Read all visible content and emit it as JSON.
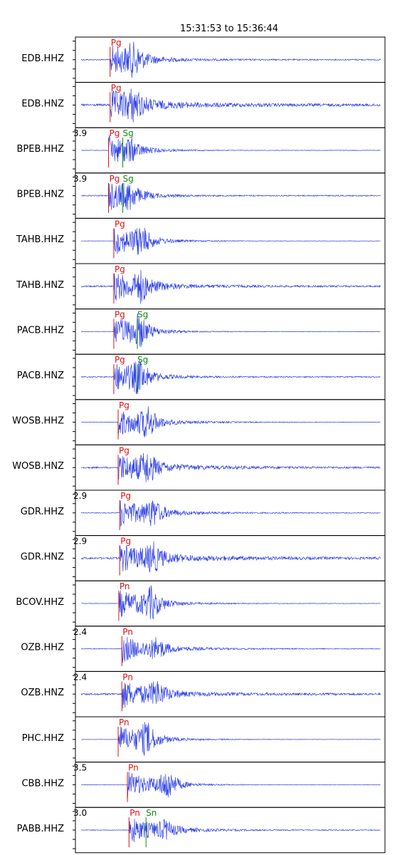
{
  "chart_data": {
    "type": "line",
    "title": "15:31:53 to 15:36:44",
    "xlabel": "",
    "ylabel": "",
    "colors": {
      "trace": "#1a2ee6",
      "p_pick": "#e01010",
      "s_pick": "#148a14",
      "frame": "#000000"
    },
    "panels": [
      {
        "station": "EDB.HHZ",
        "amp_label": "",
        "pick_time": 0.112,
        "s_time": null,
        "p_label": "Pg",
        "s_label": "",
        "burst_time": 0.188,
        "noise": 0.03,
        "decay": 0.1,
        "s_amp": 1.0
      },
      {
        "station": "EDB.HNZ",
        "amp_label": "",
        "pick_time": 0.112,
        "s_time": null,
        "p_label": "Pg",
        "s_label": "",
        "burst_time": 0.188,
        "noise": 0.06,
        "decay": 0.22,
        "s_amp": 0.9
      },
      {
        "station": "BPEB.HHZ",
        "amp_label": "3.9",
        "pick_time": 0.107,
        "s_time": 0.153,
        "p_label": "Pg",
        "s_label": "Sg",
        "burst_time": 0.175,
        "noise": 0.015,
        "decay": 0.05,
        "s_amp": 0.6
      },
      {
        "station": "BPEB.HNZ",
        "amp_label": "3.9",
        "pick_time": 0.107,
        "s_time": 0.153,
        "p_label": "Pg",
        "s_label": "Sg",
        "burst_time": 0.175,
        "noise": 0.03,
        "decay": 0.05,
        "s_amp": 0.7
      },
      {
        "station": "TAHB.HHZ",
        "amp_label": "",
        "pick_time": 0.124,
        "s_time": null,
        "p_label": "Pg",
        "s_label": "",
        "burst_time": 0.212,
        "noise": 0.01,
        "decay": 0.08,
        "s_amp": 0.9
      },
      {
        "station": "TAHB.HNZ",
        "amp_label": "",
        "pick_time": 0.124,
        "s_time": null,
        "p_label": "Pg",
        "s_label": "",
        "burst_time": 0.212,
        "noise": 0.04,
        "decay": 0.15,
        "s_amp": 0.8
      },
      {
        "station": "PACB.HHZ",
        "amp_label": "",
        "pick_time": 0.124,
        "s_time": 0.2,
        "p_label": "Pg",
        "s_label": "Sg",
        "burst_time": 0.205,
        "noise": 0.01,
        "decay": 0.07,
        "s_amp": 1.0
      },
      {
        "station": "PACB.HNZ",
        "amp_label": "",
        "pick_time": 0.124,
        "s_time": 0.2,
        "p_label": "Pg",
        "s_label": "Sg",
        "burst_time": 0.205,
        "noise": 0.03,
        "decay": 0.07,
        "s_amp": 1.0
      },
      {
        "station": "WOSB.HHZ",
        "amp_label": "",
        "pick_time": 0.138,
        "s_time": null,
        "p_label": "Pg",
        "s_label": "",
        "burst_time": 0.232,
        "noise": 0.01,
        "decay": 0.12,
        "s_amp": 0.9
      },
      {
        "station": "WOSB.HNZ",
        "amp_label": "",
        "pick_time": 0.138,
        "s_time": null,
        "p_label": "Pg",
        "s_label": "",
        "burst_time": 0.232,
        "noise": 0.04,
        "decay": 0.2,
        "s_amp": 0.9
      },
      {
        "station": "GDR.HHZ",
        "amp_label": "2.9",
        "pick_time": 0.143,
        "s_time": null,
        "p_label": "Pg",
        "s_label": "",
        "burst_time": 0.25,
        "noise": 0.02,
        "decay": 0.13,
        "s_amp": 0.8
      },
      {
        "station": "GDR.HNZ",
        "amp_label": "2.9",
        "pick_time": 0.143,
        "s_time": null,
        "p_label": "Pg",
        "s_label": "",
        "burst_time": 0.25,
        "noise": 0.05,
        "decay": 0.25,
        "s_amp": 0.8
      },
      {
        "station": "BCOV.HHZ",
        "amp_label": "",
        "pick_time": 0.14,
        "s_time": null,
        "p_label": "Pn",
        "s_label": "",
        "burst_time": 0.245,
        "noise": 0.01,
        "decay": 0.1,
        "s_amp": 1.0
      },
      {
        "station": "OZB.HHZ",
        "amp_label": "2.4",
        "pick_time": 0.15,
        "s_time": null,
        "p_label": "Pn",
        "s_label": "",
        "burst_time": 0.263,
        "noise": 0.02,
        "decay": 0.12,
        "s_amp": 0.6
      },
      {
        "station": "OZB.HNZ",
        "amp_label": "2.4",
        "pick_time": 0.15,
        "s_time": null,
        "p_label": "Pn",
        "s_label": "",
        "burst_time": 0.263,
        "noise": 0.05,
        "decay": 0.15,
        "s_amp": 0.7
      },
      {
        "station": "PHC.HHZ",
        "amp_label": "",
        "pick_time": 0.138,
        "s_time": null,
        "p_label": "Pn",
        "s_label": "",
        "burst_time": 0.23,
        "noise": 0.01,
        "decay": 0.08,
        "s_amp": 1.0
      },
      {
        "station": "CBB.HHZ",
        "amp_label": "3.5",
        "pick_time": 0.168,
        "s_time": null,
        "p_label": "Pn",
        "s_label": "",
        "burst_time": 0.298,
        "noise": 0.01,
        "decay": 0.07,
        "s_amp": 1.0
      },
      {
        "station": "PABB.HHZ",
        "amp_label": "3.0",
        "pick_time": 0.173,
        "s_time": 0.228,
        "p_label": "Pn",
        "s_label": "Sn",
        "burst_time": 0.29,
        "noise": 0.02,
        "decay": 0.12,
        "s_amp": 0.5
      }
    ]
  }
}
